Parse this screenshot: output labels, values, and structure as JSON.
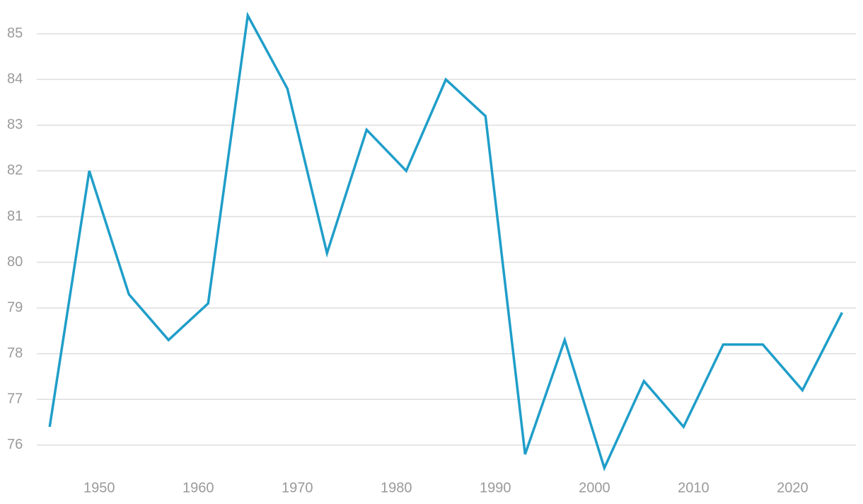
{
  "chart_data": {
    "type": "line",
    "x": [
      1945,
      1949,
      1953,
      1957,
      1961,
      1965,
      1969,
      1973,
      1977,
      1981,
      1985,
      1989,
      1993,
      1997,
      2001,
      2005,
      2009,
      2013,
      2017,
      2021,
      2025
    ],
    "series": [
      {
        "color": "#1f9ec9",
        "values": [
          76.4,
          82.0,
          79.3,
          78.3,
          79.1,
          85.4,
          83.8,
          80.2,
          82.9,
          82.0,
          84.0,
          83.2,
          75.8,
          78.3,
          75.5,
          77.4,
          76.4,
          78.2,
          78.2,
          77.2,
          78.9
        ]
      }
    ],
    "xlim": [
      1943.7,
      2026.4
    ],
    "xticks": [
      1950,
      1960,
      1970,
      1980,
      1990,
      2000,
      2010,
      2020
    ],
    "ylim": [
      75.3,
      85.6
    ],
    "yticks": [
      76,
      77,
      78,
      79,
      80,
      81,
      82,
      83,
      84,
      85
    ],
    "grid": true
  }
}
